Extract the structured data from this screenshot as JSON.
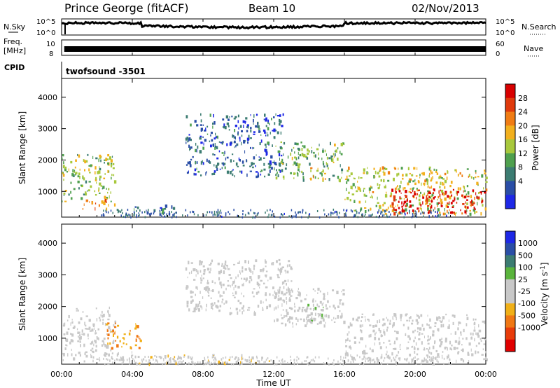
{
  "header": {
    "title": "Prince George (fitACF)",
    "beam": "Beam 10",
    "date": "02/Nov/2013"
  },
  "strips": {
    "nsky_label": "N.Sky",
    "nsky_ticks": [
      "10^5",
      "10^0"
    ],
    "nsearch_label": "N.Search",
    "freq_label_1": "Freq.",
    "freq_label_2": "[MHz]",
    "freq_ticks": [
      "10",
      "8"
    ],
    "nave_label": "Nave",
    "nave_ticks": [
      "60",
      "0"
    ],
    "cpid_label": "CPID",
    "cpid_value": "twofsound -3501"
  },
  "colors": {
    "power": [
      "#1e28e6",
      "#2a4ea6",
      "#3c7c72",
      "#4fa04e",
      "#a8c83c",
      "#f2b01e",
      "#f07c14",
      "#e03a0c",
      "#d80000"
    ],
    "velocity": [
      "#1e28e6",
      "#2a4ea6",
      "#3c7c72",
      "#5ab43c",
      "#c8c8c8",
      "#c8c8c8",
      "#f0b018",
      "#f07814",
      "#e83c0a",
      "#e00000"
    ]
  },
  "chart_data": [
    {
      "type": "heatmap",
      "title": "Power",
      "ylabel": "Slant Range [km]",
      "xlabel": "Time UT",
      "xlim": [
        "00:00",
        "24:00"
      ],
      "ylim": [
        180,
        4600
      ],
      "x_ticks": [
        "00:00",
        "04:00",
        "08:00",
        "12:00",
        "16:00",
        "20:00",
        "00:00"
      ],
      "y_ticks": [
        1000,
        2000,
        3000,
        4000
      ],
      "colorbar": {
        "label": "Power [dB]",
        "ticks": [
          "4",
          "8",
          "12",
          "16",
          "20",
          "24",
          "28"
        ],
        "range": [
          0,
          30
        ]
      },
      "regions": [
        {
          "t": [
            0,
            3
          ],
          "r": [
            700,
            2200
          ],
          "value": 14
        },
        {
          "t": [
            1,
            3
          ],
          "r": [
            450,
            800
          ],
          "value": 22
        },
        {
          "t": [
            4,
            6.5
          ],
          "r": [
            300,
            600
          ],
          "value": 7
        },
        {
          "t": [
            7,
            12.5
          ],
          "r": [
            1500,
            3500
          ],
          "value": 6
        },
        {
          "t": [
            12,
            16
          ],
          "r": [
            1400,
            2600
          ],
          "value": 12
        },
        {
          "t": [
            14,
            15
          ],
          "r": [
            1400,
            1800
          ],
          "value": 20
        },
        {
          "t": [
            16,
            24
          ],
          "r": [
            300,
            1800
          ],
          "value": 16
        },
        {
          "t": [
            18.5,
            24
          ],
          "r": [
            300,
            1100
          ],
          "value": 28
        }
      ]
    },
    {
      "type": "heatmap",
      "title": "Velocity",
      "ylabel": "Slant Range [km]",
      "xlabel": "Time UT",
      "xlim": [
        "00:00",
        "24:00"
      ],
      "ylim": [
        180,
        4600
      ],
      "x_ticks": [
        "00:00",
        "04:00",
        "08:00",
        "12:00",
        "16:00",
        "20:00",
        "00:00"
      ],
      "y_ticks": [
        1000,
        2000,
        3000,
        4000
      ],
      "colorbar": {
        "label": "Velocity [m s^-1]",
        "ticks": [
          "1000",
          "500",
          "100",
          "25",
          "-25",
          "-100",
          "-500",
          "-1000"
        ],
        "range": [
          -1000,
          1000
        ]
      },
      "regions": [
        {
          "t": [
            0,
            3
          ],
          "r": [
            500,
            2000
          ],
          "value": 0
        },
        {
          "t": [
            2.5,
            4.5
          ],
          "r": [
            700,
            1500
          ],
          "value": -400
        },
        {
          "t": [
            0,
            4
          ],
          "r": [
            300,
            600
          ],
          "value": -100
        },
        {
          "t": [
            7,
            13
          ],
          "r": [
            1800,
            3500
          ],
          "value": 0
        },
        {
          "t": [
            12,
            16
          ],
          "r": [
            1400,
            2600
          ],
          "value": 0
        },
        {
          "t": [
            13.5,
            15
          ],
          "r": [
            1500,
            2100
          ],
          "value": 150
        },
        {
          "t": [
            16,
            24
          ],
          "r": [
            300,
            1800
          ],
          "value": 0
        },
        {
          "t": [
            4,
            12
          ],
          "r": [
            200,
            500
          ],
          "value": -150
        }
      ]
    }
  ]
}
